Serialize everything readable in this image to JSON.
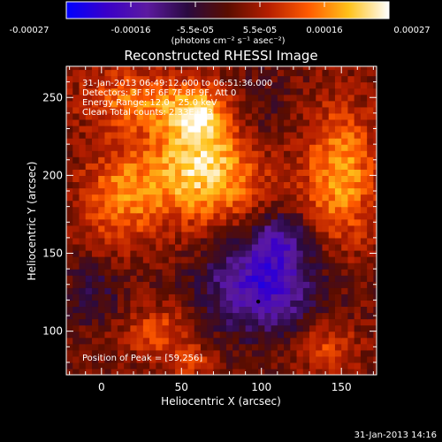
{
  "chart_data": {
    "type": "heatmap",
    "title": "Reconstructed RHESSI Image",
    "xlabel": "Heliocentric X (arcsec)",
    "ylabel": "Heliocentric Y (arcsec)",
    "xlim": [
      -22,
      172
    ],
    "ylim": [
      72,
      270
    ],
    "x_ticks": [
      0,
      50,
      100,
      150
    ],
    "y_ticks": [
      100,
      150,
      200,
      250
    ],
    "x_tick_labels": [
      "0",
      "50",
      "100",
      "150"
    ],
    "y_tick_labels": [
      "100",
      "150",
      "200",
      "250"
    ],
    "colorbar": {
      "min": -0.00027,
      "max": 0.00027,
      "tick_labels": [
        "-0.00027",
        "-0.00016",
        "-5.5e-05",
        "5.5e-05",
        "0.00016",
        "0.00027"
      ],
      "unit_label": "(photons cm⁻² s⁻¹ asec⁻²)",
      "colors": [
        "#0000ff",
        "#3a00c8",
        "#5c1aa0",
        "#2a0a40",
        "#5a0d00",
        "#b41e00",
        "#ff5a00",
        "#ffc21a",
        "#ffffff"
      ]
    },
    "info_lines": [
      "31-Jan-2013 06:49:12.000 to 06:51:36.000",
      "Detectors: 3F 5F 6F 7F 8F 9F, Att 0",
      "Energy Range: 12.0 - 25.0 keV",
      "Clean     Total counts: 2.33E+03"
    ],
    "peak_label": "Position of Peak = [59,256]",
    "marker_point": {
      "x": 98,
      "y": 119
    },
    "sources": [
      {
        "x": 65,
        "y": 205,
        "sx": 28,
        "sy": 25,
        "amp": 1.0
      },
      {
        "x": 60,
        "y": 240,
        "sx": 15,
        "sy": 12,
        "amp": 0.7
      },
      {
        "x": 18,
        "y": 250,
        "sx": 22,
        "sy": 14,
        "amp": 0.55
      },
      {
        "x": 10,
        "y": 185,
        "sx": 18,
        "sy": 22,
        "amp": 0.55
      },
      {
        "x": 150,
        "y": 200,
        "sx": 16,
        "sy": 32,
        "amp": 0.75
      },
      {
        "x": 140,
        "y": 90,
        "sx": 14,
        "sy": 12,
        "amp": 0.45
      },
      {
        "x": 35,
        "y": 100,
        "sx": 16,
        "sy": 12,
        "amp": 0.45
      },
      {
        "x": 55,
        "y": 80,
        "sx": 12,
        "sy": 8,
        "amp": 0.35
      },
      {
        "x": 100,
        "y": 130,
        "sx": 25,
        "sy": 22,
        "amp": -0.9
      },
      {
        "x": 112,
        "y": 160,
        "sx": 12,
        "sy": 12,
        "amp": -0.5
      },
      {
        "x": 95,
        "y": 230,
        "sx": 16,
        "sy": 24,
        "amp": -0.3
      },
      {
        "x": -5,
        "y": 125,
        "sx": 12,
        "sy": 14,
        "amp": -0.35
      }
    ]
  },
  "footer": {
    "timestamp": "31-Jan-2013 14:16"
  }
}
